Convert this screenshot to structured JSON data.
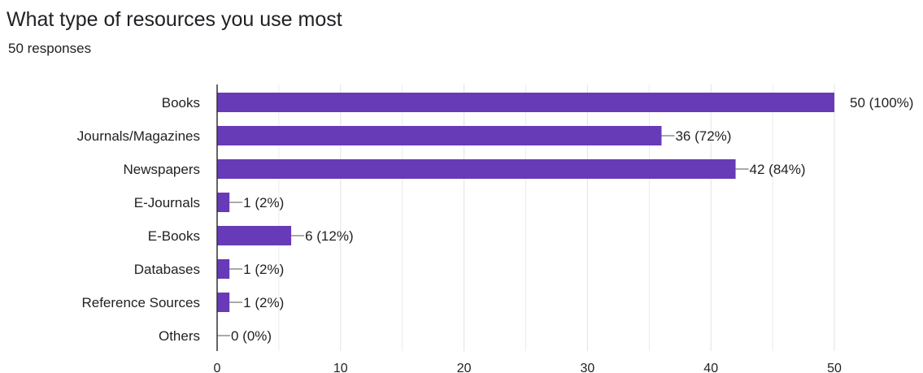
{
  "header": {
    "title": "What type of resources you use most",
    "subtitle": "50 responses"
  },
  "colors": {
    "bar": "#673ab7",
    "grid": "#e6e6e6",
    "axis": "#333333",
    "text": "#222222"
  },
  "chart_data": {
    "type": "bar",
    "orientation": "horizontal",
    "title": "What type of resources you use most",
    "subtitle": "50 responses",
    "categories": [
      "Books",
      "Journals/Magazines",
      "Newspapers",
      "E-Journals",
      "E-Books",
      "Databases",
      "Reference Sources",
      "Others"
    ],
    "values": [
      50,
      36,
      42,
      1,
      6,
      1,
      1,
      0
    ],
    "data_labels": [
      "50 (100%)",
      "36 (72%)",
      "42 (84%)",
      "1 (2%)",
      "6 (12%)",
      "1 (2%)",
      "1 (2%)",
      "0 (0%)"
    ],
    "xlim": [
      0,
      50
    ],
    "xticks": [
      0,
      10,
      20,
      30,
      40,
      50
    ],
    "xtick_labels": [
      "0",
      "10",
      "20",
      "30",
      "40",
      "50"
    ],
    "grid": true,
    "legend": "none"
  }
}
